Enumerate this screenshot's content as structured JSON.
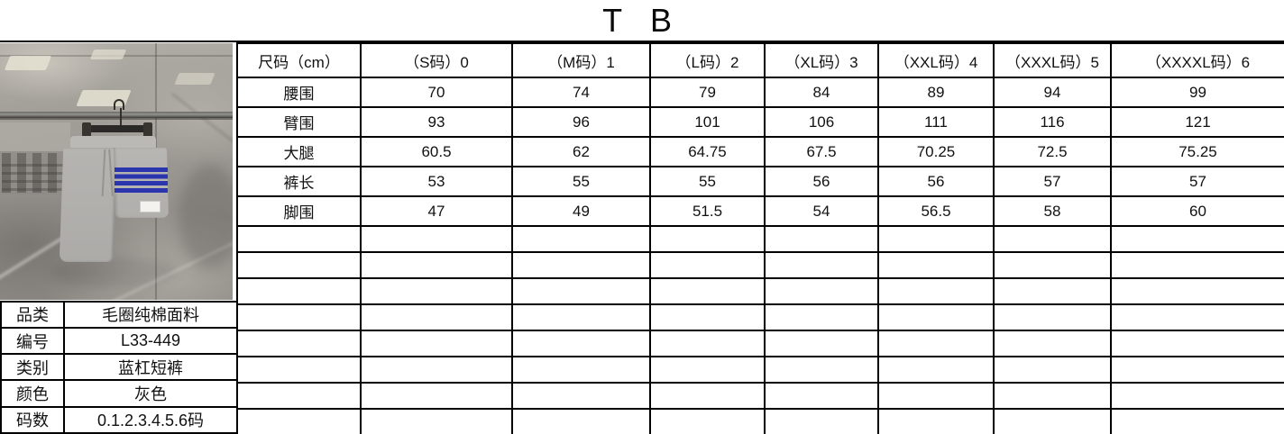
{
  "title": "T B",
  "size_table": {
    "unit_header": "尺码（cm）",
    "size_headers": [
      "（S码）0",
      "（M码）1",
      "（L码）2",
      "（XL码）3",
      "（XXL码）4",
      "（XXXL码）5",
      "（XXXXL码）6"
    ],
    "rows": [
      {
        "label": "腰围",
        "values": [
          "70",
          "74",
          "79",
          "84",
          "89",
          "94",
          "99"
        ]
      },
      {
        "label": "臂围",
        "values": [
          "93",
          "96",
          "101",
          "106",
          "111",
          "116",
          "121"
        ]
      },
      {
        "label": "大腿",
        "values": [
          "60.5",
          "62",
          "64.75",
          "67.5",
          "70.25",
          "72.5",
          "75.25"
        ]
      },
      {
        "label": "裤长",
        "values": [
          "53",
          "55",
          "55",
          "56",
          "56",
          "57",
          "57"
        ]
      },
      {
        "label": "脚围",
        "values": [
          "47",
          "49",
          "51.5",
          "54",
          "56.5",
          "58",
          "60"
        ]
      }
    ],
    "empty_rows": 8
  },
  "product_info": [
    {
      "label": "品类",
      "value": "毛圈纯棉面料"
    },
    {
      "label": "编号",
      "value": "L33-449"
    },
    {
      "label": "类别",
      "value": "蓝杠短裤"
    },
    {
      "label": "颜色",
      "value": "灰色"
    },
    {
      "label": "码数",
      "value": "0.1.2.3.4.5.6码"
    }
  ],
  "photo": {
    "colors": {
      "marble_wall": "#9b9792",
      "shorts": "#b4b3b0",
      "stripes": "#2b36ae",
      "hanger": "#2b2927",
      "rail": "#55524f",
      "care_label": "#f3f2ee"
    }
  }
}
